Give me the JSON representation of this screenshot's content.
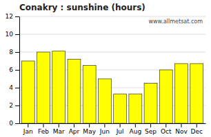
{
  "chart_data": {
    "type": "bar",
    "title": "Conakry : sunshine (hours)",
    "categories": [
      "Jan",
      "Feb",
      "Mar",
      "Apr",
      "May",
      "Jun",
      "Jul",
      "Aug",
      "Sep",
      "Oct",
      "Nov",
      "Dec"
    ],
    "values": [
      7.0,
      8.0,
      8.1,
      7.2,
      6.5,
      5.0,
      3.3,
      3.3,
      4.5,
      6.0,
      6.7,
      6.7
    ],
    "color": "#ffff00",
    "ylim": [
      0,
      12
    ],
    "yticks": [
      0,
      2,
      4,
      6,
      8,
      10,
      12
    ],
    "grid": true,
    "annotation": "www.allmetsat.com"
  }
}
